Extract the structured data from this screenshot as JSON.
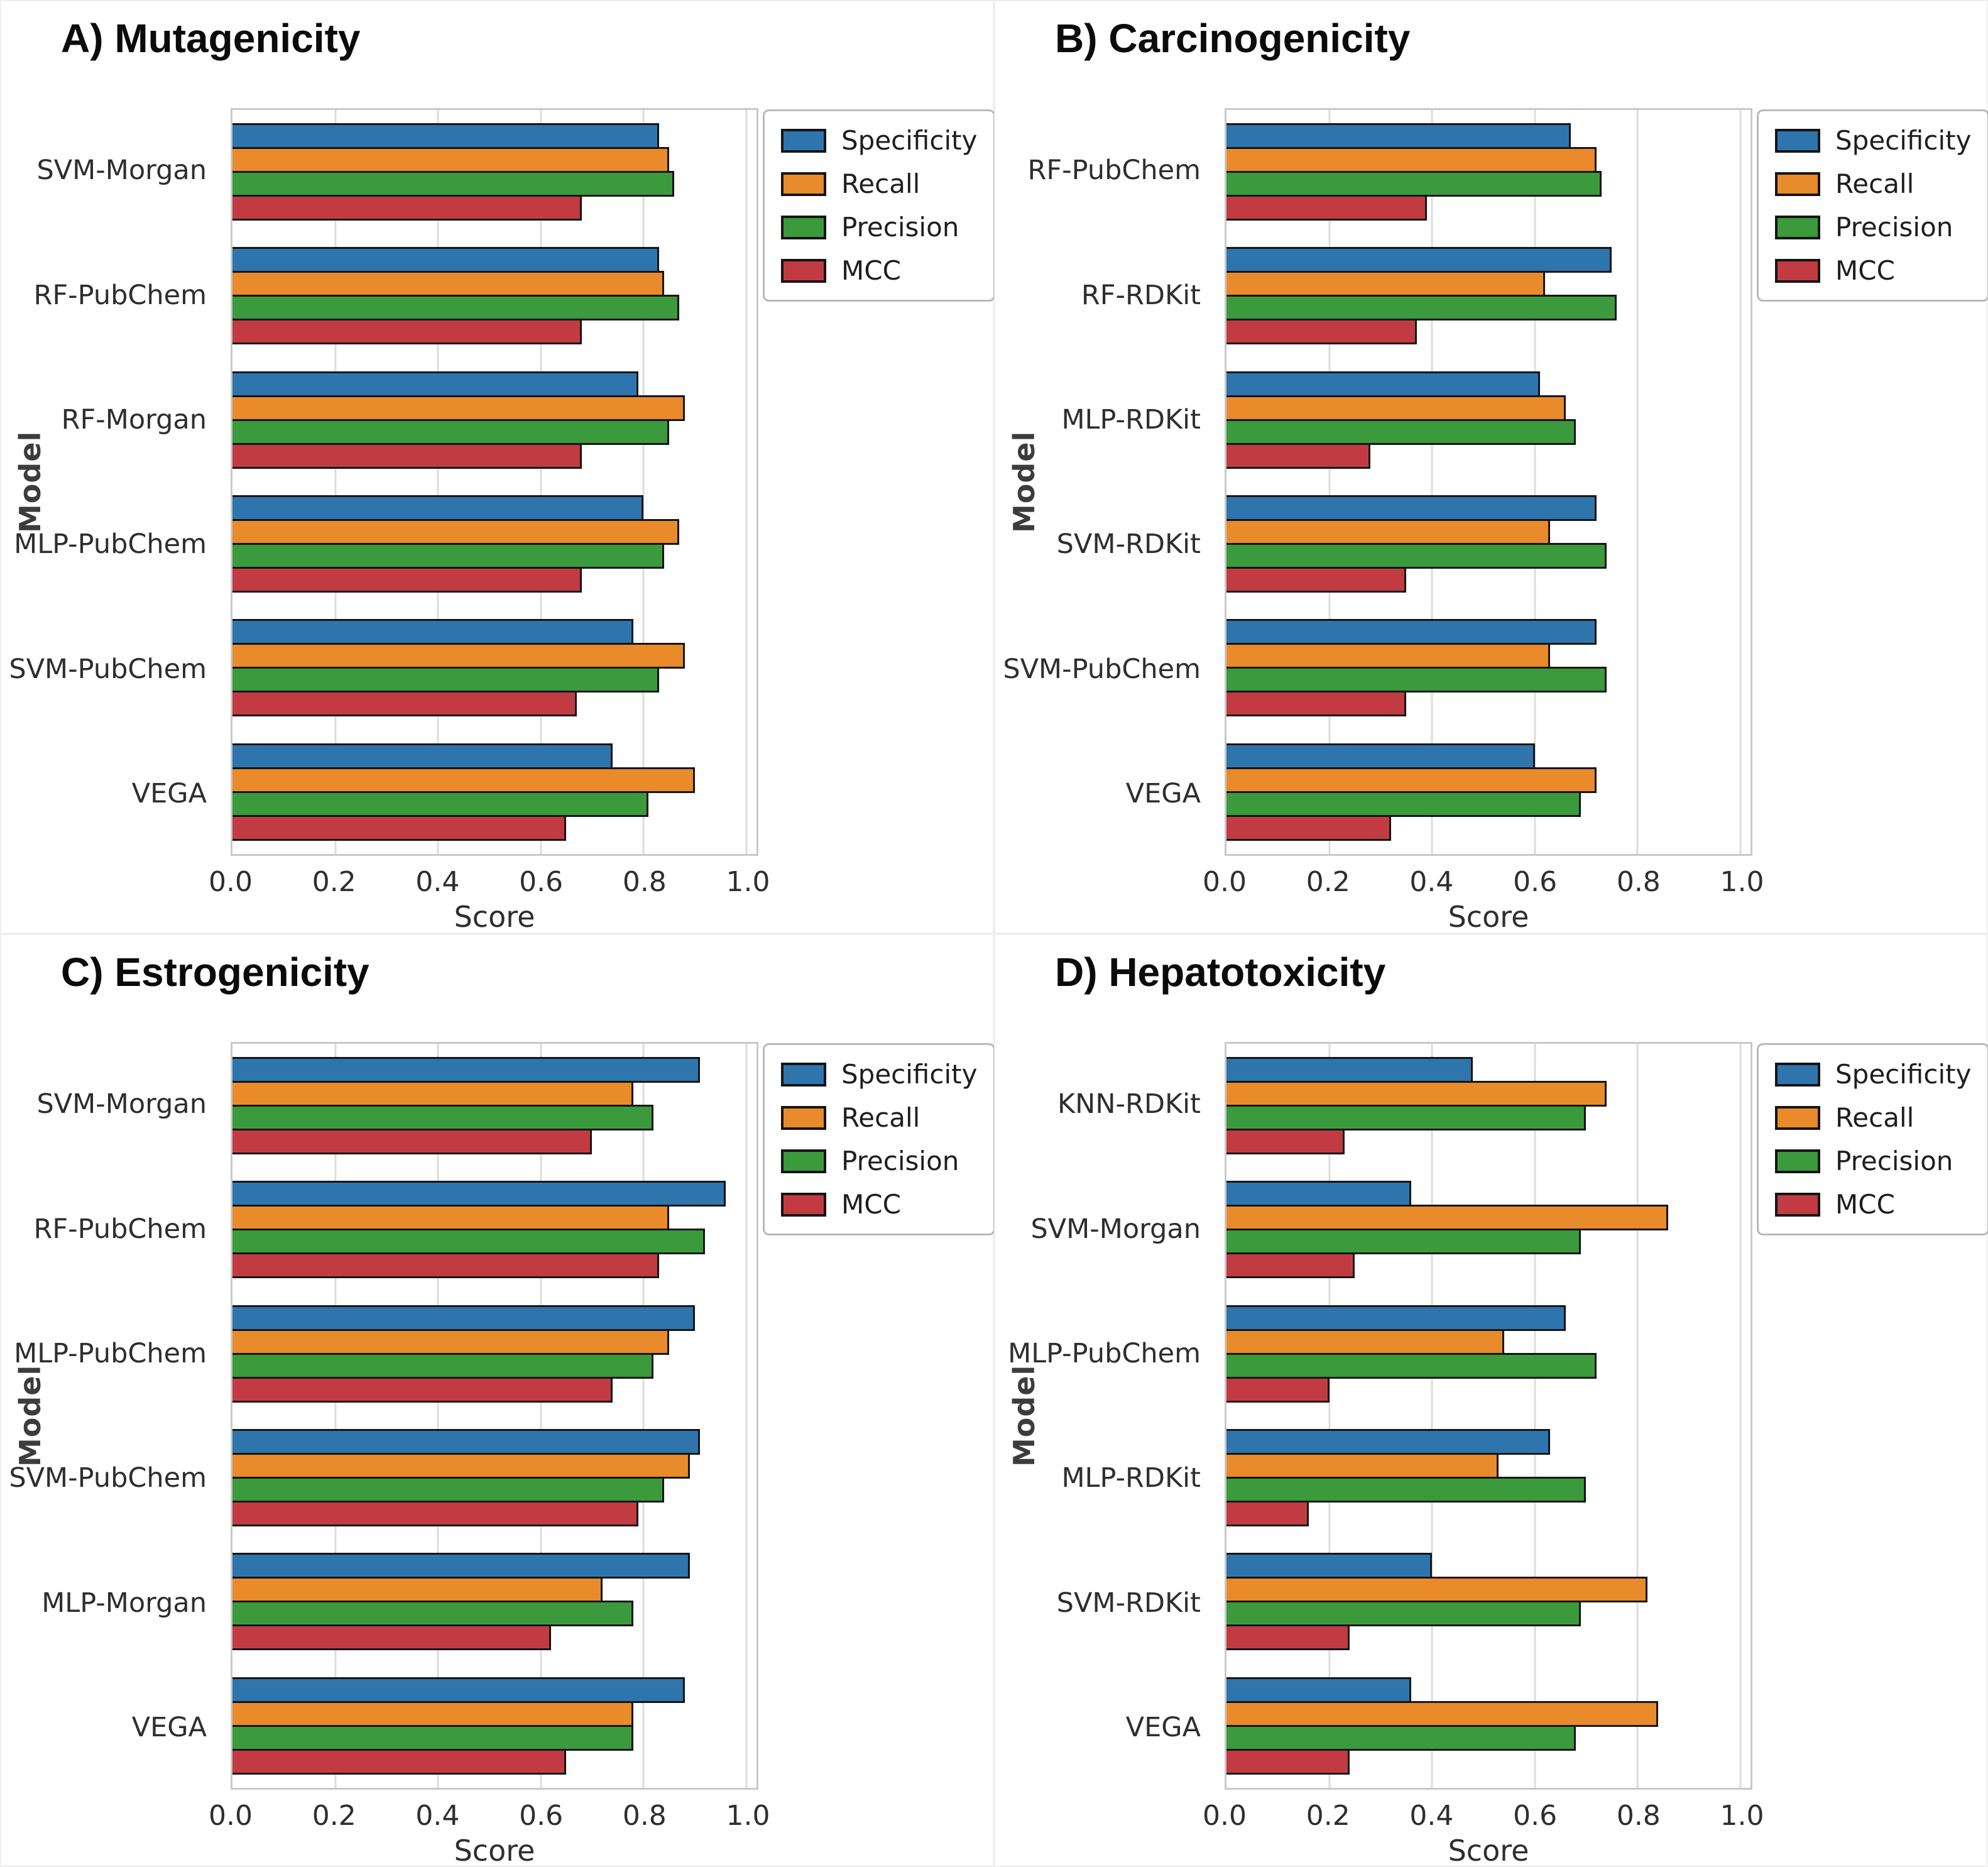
{
  "figure": {
    "background": "#ffffff",
    "grid_color": "#dcdcdc",
    "spine_color": "#c9c9c9",
    "bar_edge_color": "#151515",
    "text_color": "#2e2e2e",
    "title_color": "#0b0b0b"
  },
  "metric_colors": {
    "specificity": "#2e75ae",
    "recall": "#e98a2b",
    "precision": "#3b9a3b",
    "mcc": "#c23b43"
  },
  "legend": {
    "labels": [
      "Specificity",
      "Recall",
      "Precision",
      "MCC"
    ]
  },
  "chart_data": [
    {
      "type": "bar",
      "orientation": "horizontal",
      "title": "A) Mutagenicity",
      "xlabel": "Score",
      "ylabel": "Model",
      "xlim": [
        0,
        1.02
      ],
      "xticks": [
        0,
        0.2,
        0.4,
        0.6,
        0.8,
        1.0
      ],
      "grid": true,
      "legend_position": "upper right outside",
      "categories": [
        "SVM-Morgan",
        "RF-PubChem",
        "RF-Morgan",
        "MLP-PubChem",
        "SVM-PubChem",
        "VEGA"
      ],
      "series": [
        {
          "name": "Specificity",
          "color": "#2e75ae",
          "values": [
            0.83,
            0.83,
            0.79,
            0.8,
            0.78,
            0.74
          ]
        },
        {
          "name": "Recall",
          "color": "#e98a2b",
          "values": [
            0.85,
            0.84,
            0.88,
            0.87,
            0.88,
            0.9
          ]
        },
        {
          "name": "Precision",
          "color": "#3b9a3b",
          "values": [
            0.86,
            0.87,
            0.85,
            0.84,
            0.83,
            0.81
          ]
        },
        {
          "name": "MCC",
          "color": "#c23b43",
          "values": [
            0.68,
            0.68,
            0.68,
            0.68,
            0.67,
            0.65
          ]
        }
      ]
    },
    {
      "type": "bar",
      "orientation": "horizontal",
      "title": "B) Carcinogenicity",
      "xlabel": "Score",
      "ylabel": "Model",
      "xlim": [
        0,
        1.02
      ],
      "xticks": [
        0,
        0.2,
        0.4,
        0.6,
        0.8,
        1.0
      ],
      "grid": true,
      "legend_position": "upper right outside",
      "categories": [
        "RF-PubChem",
        "RF-RDKit",
        "MLP-RDKit",
        "SVM-RDKit",
        "SVM-PubChem",
        "VEGA"
      ],
      "series": [
        {
          "name": "Specificity",
          "color": "#2e75ae",
          "values": [
            0.67,
            0.75,
            0.61,
            0.72,
            0.72,
            0.6
          ]
        },
        {
          "name": "Recall",
          "color": "#e98a2b",
          "values": [
            0.72,
            0.62,
            0.66,
            0.63,
            0.63,
            0.72
          ]
        },
        {
          "name": "Precision",
          "color": "#3b9a3b",
          "values": [
            0.73,
            0.76,
            0.68,
            0.74,
            0.74,
            0.69
          ]
        },
        {
          "name": "MCC",
          "color": "#c23b43",
          "values": [
            0.39,
            0.37,
            0.28,
            0.35,
            0.35,
            0.32
          ]
        }
      ]
    },
    {
      "type": "bar",
      "orientation": "horizontal",
      "title": "C) Estrogenicity",
      "xlabel": "Score",
      "ylabel": "Model",
      "xlim": [
        0,
        1.02
      ],
      "xticks": [
        0,
        0.2,
        0.4,
        0.6,
        0.8,
        1.0
      ],
      "grid": true,
      "legend_position": "upper right outside",
      "categories": [
        "SVM-Morgan",
        "RF-PubChem",
        "MLP-PubChem",
        "SVM-PubChem",
        "MLP-Morgan",
        "VEGA"
      ],
      "series": [
        {
          "name": "Specificity",
          "color": "#2e75ae",
          "values": [
            0.91,
            0.96,
            0.9,
            0.91,
            0.89,
            0.88
          ]
        },
        {
          "name": "Recall",
          "color": "#e98a2b",
          "values": [
            0.78,
            0.85,
            0.85,
            0.89,
            0.72,
            0.78
          ]
        },
        {
          "name": "Precision",
          "color": "#3b9a3b",
          "values": [
            0.82,
            0.92,
            0.82,
            0.84,
            0.78,
            0.78
          ]
        },
        {
          "name": "MCC",
          "color": "#c23b43",
          "values": [
            0.7,
            0.83,
            0.74,
            0.79,
            0.62,
            0.65
          ]
        }
      ]
    },
    {
      "type": "bar",
      "orientation": "horizontal",
      "title": "D) Hepatotoxicity",
      "xlabel": "Score",
      "ylabel": "Model",
      "xlim": [
        0,
        1.02
      ],
      "xticks": [
        0,
        0.2,
        0.4,
        0.6,
        0.8,
        1.0
      ],
      "grid": true,
      "legend_position": "upper right outside",
      "categories": [
        "KNN-RDKit",
        "SVM-Morgan",
        "MLP-PubChem",
        "MLP-RDKit",
        "SVM-RDKit",
        "VEGA"
      ],
      "series": [
        {
          "name": "Specificity",
          "color": "#2e75ae",
          "values": [
            0.48,
            0.36,
            0.66,
            0.63,
            0.4,
            0.36
          ]
        },
        {
          "name": "Recall",
          "color": "#e98a2b",
          "values": [
            0.74,
            0.86,
            0.54,
            0.53,
            0.82,
            0.84
          ]
        },
        {
          "name": "Precision",
          "color": "#3b9a3b",
          "values": [
            0.7,
            0.69,
            0.72,
            0.7,
            0.69,
            0.68
          ]
        },
        {
          "name": "MCC",
          "color": "#c23b43",
          "values": [
            0.23,
            0.25,
            0.2,
            0.16,
            0.24,
            0.24
          ]
        }
      ]
    }
  ]
}
